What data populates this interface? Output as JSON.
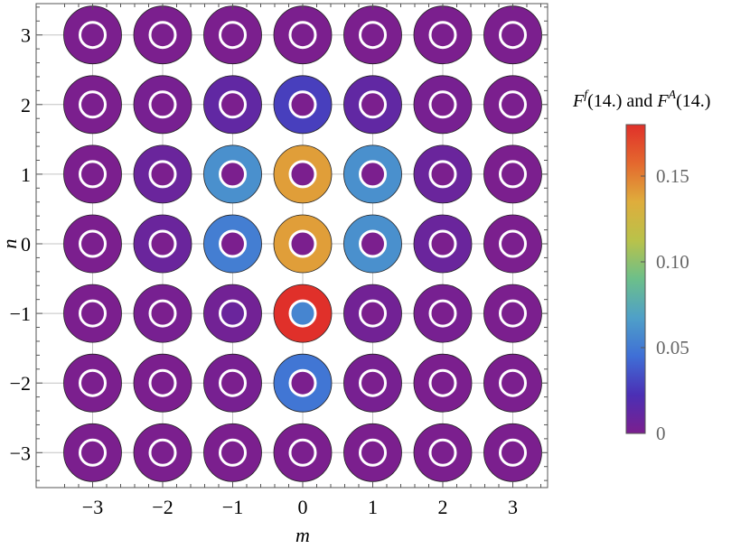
{
  "chart_data": {
    "type": "scatter",
    "title": "",
    "xlabel": "m",
    "ylabel": "n",
    "xlim": [
      -3.5,
      3.5
    ],
    "ylim": [
      -3.5,
      3.5
    ],
    "xticks": [
      "−3",
      "−2",
      "−1",
      "0",
      "1",
      "2",
      "3"
    ],
    "yticks": [
      "−3",
      "−2",
      "−1",
      "0",
      "1",
      "2",
      "3"
    ],
    "grid": true,
    "colorbar": {
      "title_parts": [
        "F",
        "f",
        "(14.) and ",
        "F",
        "A",
        "(14.)"
      ],
      "range": [
        0,
        0.18
      ],
      "ticks": [
        {
          "value": 0,
          "label": "0"
        },
        {
          "value": 0.05,
          "label": "0.05"
        },
        {
          "value": 0.1,
          "label": "0.10"
        },
        {
          "value": 0.15,
          "label": "0.15"
        }
      ]
    },
    "series": [
      {
        "encoding": "outer ring color = F^f(14.)"
      },
      {
        "encoding": "inner disk color = F^A(14.)"
      }
    ],
    "points": [
      {
        "m": -3,
        "n": 3,
        "outer": 0.0,
        "inner": 0.0
      },
      {
        "m": -2,
        "n": 3,
        "outer": 0.0,
        "inner": 0.0
      },
      {
        "m": -1,
        "n": 3,
        "outer": 0.0,
        "inner": 0.0
      },
      {
        "m": 0,
        "n": 3,
        "outer": 0.0,
        "inner": 0.0
      },
      {
        "m": 1,
        "n": 3,
        "outer": 0.0,
        "inner": 0.0
      },
      {
        "m": 2,
        "n": 3,
        "outer": 0.0,
        "inner": 0.0
      },
      {
        "m": 3,
        "n": 3,
        "outer": 0.0,
        "inner": 0.0
      },
      {
        "m": -3,
        "n": 2,
        "outer": 0.0,
        "inner": 0.0
      },
      {
        "m": -2,
        "n": 2,
        "outer": 0.002,
        "inner": 0.0
      },
      {
        "m": -1,
        "n": 2,
        "outer": 0.012,
        "inner": 0.0
      },
      {
        "m": 0,
        "n": 2,
        "outer": 0.028,
        "inner": 0.0
      },
      {
        "m": 1,
        "n": 2,
        "outer": 0.012,
        "inner": 0.0
      },
      {
        "m": 2,
        "n": 2,
        "outer": 0.002,
        "inner": 0.0
      },
      {
        "m": 3,
        "n": 2,
        "outer": 0.0,
        "inner": 0.0
      },
      {
        "m": -3,
        "n": 1,
        "outer": 0.0,
        "inner": 0.0
      },
      {
        "m": -2,
        "n": 1,
        "outer": 0.008,
        "inner": 0.0
      },
      {
        "m": -1,
        "n": 1,
        "outer": 0.06,
        "inner": 0.0
      },
      {
        "m": 0,
        "n": 1,
        "outer": 0.14,
        "inner": 0.0
      },
      {
        "m": 1,
        "n": 1,
        "outer": 0.06,
        "inner": 0.0
      },
      {
        "m": 2,
        "n": 1,
        "outer": 0.008,
        "inner": 0.0
      },
      {
        "m": 3,
        "n": 1,
        "outer": 0.0,
        "inner": 0.0
      },
      {
        "m": -3,
        "n": 0,
        "outer": 0.0,
        "inner": 0.0
      },
      {
        "m": -2,
        "n": 0,
        "outer": 0.008,
        "inner": 0.0
      },
      {
        "m": -1,
        "n": 0,
        "outer": 0.052,
        "inner": 0.0
      },
      {
        "m": 0,
        "n": 0,
        "outer": 0.14,
        "inner": 0.0
      },
      {
        "m": 1,
        "n": 0,
        "outer": 0.06,
        "inner": 0.0
      },
      {
        "m": 2,
        "n": 0,
        "outer": 0.008,
        "inner": 0.0
      },
      {
        "m": 3,
        "n": 0,
        "outer": 0.0,
        "inner": 0.0
      },
      {
        "m": -3,
        "n": -1,
        "outer": 0.0,
        "inner": 0.0
      },
      {
        "m": -2,
        "n": -1,
        "outer": 0.002,
        "inner": 0.0
      },
      {
        "m": -1,
        "n": -1,
        "outer": 0.004,
        "inner": 0.008
      },
      {
        "m": 0,
        "n": -1,
        "outer": 0.18,
        "inner": 0.055
      },
      {
        "m": 1,
        "n": -1,
        "outer": 0.004,
        "inner": 0.0
      },
      {
        "m": 2,
        "n": -1,
        "outer": 0.002,
        "inner": 0.0
      },
      {
        "m": 3,
        "n": -1,
        "outer": 0.0,
        "inner": 0.0
      },
      {
        "m": -3,
        "n": -2,
        "outer": 0.0,
        "inner": 0.0
      },
      {
        "m": -2,
        "n": -2,
        "outer": 0.0,
        "inner": 0.0
      },
      {
        "m": -1,
        "n": -2,
        "outer": 0.002,
        "inner": 0.0
      },
      {
        "m": 0,
        "n": -2,
        "outer": 0.048,
        "inner": 0.0
      },
      {
        "m": 1,
        "n": -2,
        "outer": 0.002,
        "inner": 0.0
      },
      {
        "m": 2,
        "n": -2,
        "outer": 0.0,
        "inner": 0.0
      },
      {
        "m": 3,
        "n": -2,
        "outer": 0.0,
        "inner": 0.0
      },
      {
        "m": -3,
        "n": -3,
        "outer": 0.0,
        "inner": 0.0
      },
      {
        "m": -2,
        "n": -3,
        "outer": 0.0,
        "inner": 0.0
      },
      {
        "m": -1,
        "n": -3,
        "outer": 0.0,
        "inner": 0.0
      },
      {
        "m": 0,
        "n": -3,
        "outer": 0.0,
        "inner": 0.0
      },
      {
        "m": 1,
        "n": -3,
        "outer": 0.0,
        "inner": 0.0
      },
      {
        "m": 2,
        "n": -3,
        "outer": 0.0,
        "inner": 0.0
      },
      {
        "m": 3,
        "n": -3,
        "outer": 0.0,
        "inner": 0.0
      }
    ],
    "colors": {
      "stops": [
        "#7b1f8e",
        "#4b2fb5",
        "#3f6fd6",
        "#4fa0c8",
        "#6cbf8a",
        "#b9c24a",
        "#dfad3c",
        "#e4682e",
        "#e0302a"
      ],
      "ring_stroke": "#222222",
      "grid": "#c4c4c4",
      "white_ring": "#ffffff"
    }
  }
}
